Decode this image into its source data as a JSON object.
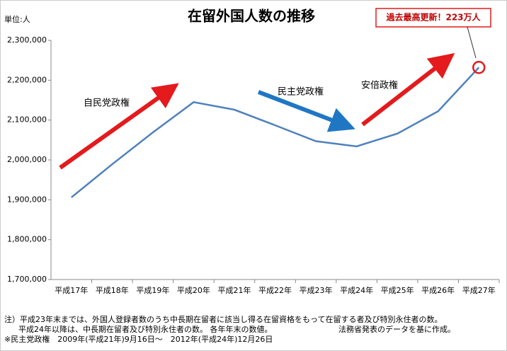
{
  "chart_data": {
    "type": "line",
    "title": "在留外国人数の推移",
    "y_unit": "単位:人",
    "categories": [
      "平成17年",
      "平成18年",
      "平成19年",
      "平成20年",
      "平成21年",
      "平成22年",
      "平成23年",
      "平成24年",
      "平成25年",
      "平成26年",
      "平成27年"
    ],
    "values": [
      1906000,
      1989000,
      2069000,
      2145000,
      2126000,
      2087000,
      2047000,
      2034000,
      2066000,
      2122000,
      2232000
    ],
    "color": "#4f81bd",
    "ylim": [
      1700000,
      2300000
    ],
    "yticks": [
      {
        "value": 1700000,
        "label": "1,700,000"
      },
      {
        "value": 1800000,
        "label": "1,800,000"
      },
      {
        "value": 1900000,
        "label": "1,900,000"
      },
      {
        "value": 2000000,
        "label": "2,000,000"
      },
      {
        "value": 2100000,
        "label": "2,100,000"
      },
      {
        "value": 2200000,
        "label": "2,200,000"
      },
      {
        "value": 2300000,
        "label": "2,300,000"
      }
    ],
    "grid": false,
    "annotations": [
      "自民党政権",
      "民主党政権",
      "安倍政権",
      "過去最高更新！223万人"
    ]
  },
  "notes": [
    "注）平成23年末までは、外国人登録者数のうち中長期在留者に該当し得る在留資格をもって在留する者及び特別永住者の数。",
    "平成24年以降は、中長期在留者及び特別永住者の数。 各年年末の数値。",
    "法務省発表のデータを基に作成。",
    "※民主党政権　2009年(平成21年)9月16日〜　2012年(平成24年)12月26日"
  ]
}
